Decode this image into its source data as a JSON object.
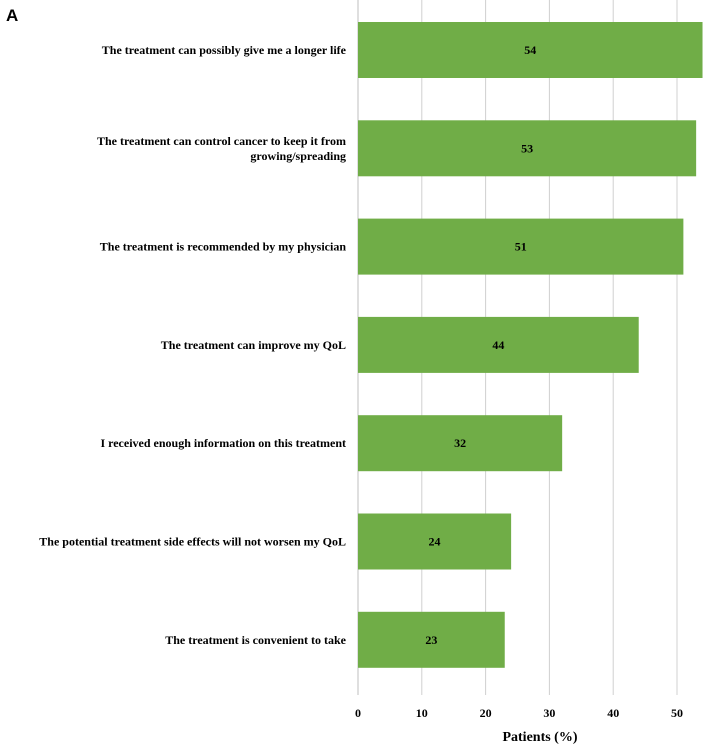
{
  "panel_label": "A",
  "chart_data": {
    "type": "bar",
    "orientation": "horizontal",
    "categories": [
      [
        "The treatment can possibly give me a longer life"
      ],
      [
        "The treatment can control cancer to keep it from",
        "growing/spreading"
      ],
      [
        "The treatment is recommended by my physician"
      ],
      [
        "The treatment can improve my QoL"
      ],
      [
        "I received enough information on this treatment"
      ],
      [
        "The potential treatment side effects will not worsen my QoL"
      ],
      [
        "The treatment is convenient to take"
      ]
    ],
    "values": [
      54,
      53,
      51,
      44,
      32,
      24,
      23
    ],
    "xlabel": "Patients (%)",
    "ylabel": "",
    "xlim": [
      0,
      54
    ],
    "xticks": [
      0,
      10,
      20,
      30,
      40,
      50
    ],
    "grid": true,
    "bar_color": "#70ad47"
  }
}
